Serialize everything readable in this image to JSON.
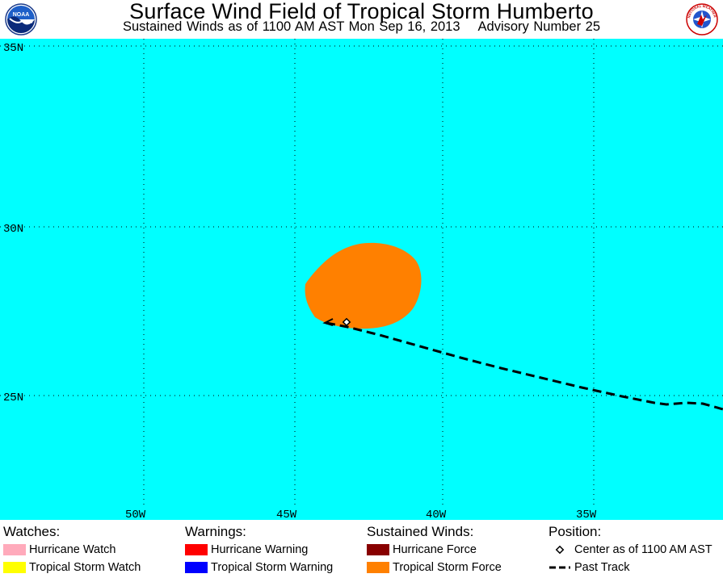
{
  "header": {
    "title": "Surface Wind Field of Tropical Storm Humberto",
    "subtitle": "Sustained Winds as of 1100 AM AST Mon Sep 16, 2013",
    "advisory": "Advisory Number 25",
    "logo_left_text": "NOAA",
    "logo_right_text": "NATIONAL WEATHER SERVICE"
  },
  "map": {
    "ocean_color": "#00ffff",
    "lat_labels": [
      "35N",
      "30N",
      "25N"
    ],
    "lon_labels": [
      "50W",
      "45W",
      "40W",
      "35W"
    ],
    "wind_field": {
      "level": "Tropical Storm Force",
      "color": "#ff8000"
    },
    "center": {
      "lat": 27.2,
      "lon": 43.0
    }
  },
  "legend": {
    "watches": {
      "heading": "Watches:",
      "items": [
        {
          "label": "Hurricane Watch",
          "color": "#ffaabb"
        },
        {
          "label": "Tropical Storm Watch",
          "color": "#ffff00"
        }
      ]
    },
    "warnings": {
      "heading": "Warnings:",
      "items": [
        {
          "label": "Hurricane Warning",
          "color": "#ff0000"
        },
        {
          "label": "Tropical Storm Warning",
          "color": "#0000ff"
        }
      ]
    },
    "winds": {
      "heading": "Sustained Winds:",
      "items": [
        {
          "label": "Hurricane Force",
          "color": "#880000"
        },
        {
          "label": "Tropical Storm Force",
          "color": "#ff8000"
        }
      ]
    },
    "position": {
      "heading": "Position:",
      "center_label": "Center as of 1100 AM AST",
      "track_label": "Past Track"
    }
  }
}
